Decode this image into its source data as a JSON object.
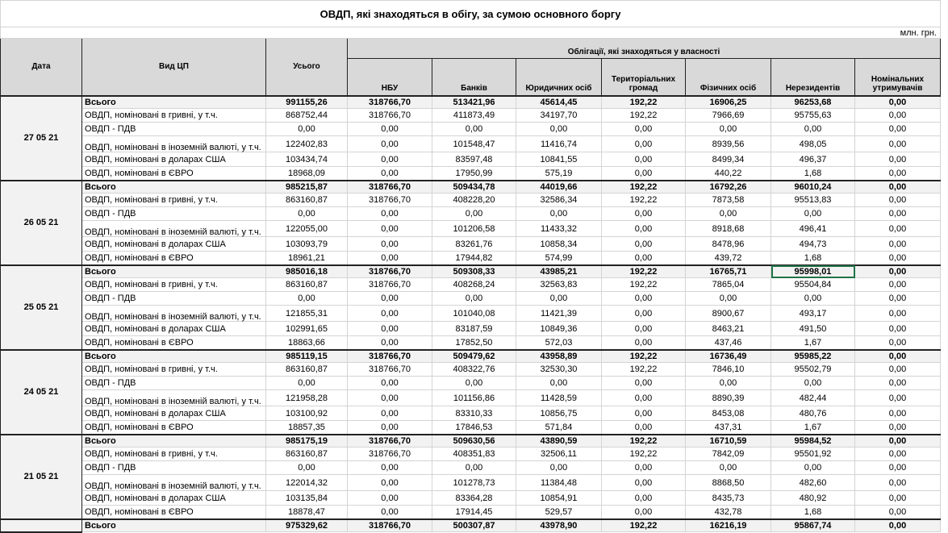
{
  "title": "ОВДП, які знаходяться в обігу, за сумою основного боргу",
  "unit": "млн. грн.",
  "header": {
    "date": "Дата",
    "type": "Вид ЦП",
    "total": "Усього",
    "group": "Облігації, які знаходяться у власності",
    "columns": [
      "НБУ",
      "Банків",
      "Юридичних осіб",
      "Територіальних громад",
      "Фізичних осіб",
      "Нерезидентів",
      "Номінальних утримувачів"
    ]
  },
  "blocks": [
    {
      "date": "27 05 21",
      "rows": [
        [
          "Всього",
          "991155,26",
          "318766,70",
          "513421,96",
          "45614,45",
          "192,22",
          "16906,25",
          "96253,68",
          "0,00"
        ],
        [
          "ОВДП, номіновані в гривні, у т.ч.",
          "868752,44",
          "318766,70",
          "411873,49",
          "34197,70",
          "192,22",
          "7966,69",
          "95755,63",
          "0,00"
        ],
        [
          "ОВДП - ПДВ",
          "0,00",
          "0,00",
          "0,00",
          "0,00",
          "0,00",
          "0,00",
          "0,00",
          "0,00"
        ],
        [
          "ОВДП, номіновані в іноземній валюті, у т.ч.",
          "122402,83",
          "0,00",
          "101548,47",
          "11416,74",
          "0,00",
          "8939,56",
          "498,05",
          "0,00"
        ],
        [
          "ОВДП, номіновані в доларах США",
          "103434,74",
          "0,00",
          "83597,48",
          "10841,55",
          "0,00",
          "8499,34",
          "496,37",
          "0,00"
        ],
        [
          "ОВДП, номіновані в ЄВРО",
          "18968,09",
          "0,00",
          "17950,99",
          "575,19",
          "0,00",
          "440,22",
          "1,68",
          "0,00"
        ]
      ]
    },
    {
      "date": "26 05 21",
      "rows": [
        [
          "Всього",
          "985215,87",
          "318766,70",
          "509434,78",
          "44019,66",
          "192,22",
          "16792,26",
          "96010,24",
          "0,00"
        ],
        [
          "ОВДП, номіновані в гривні, у т.ч.",
          "863160,87",
          "318766,70",
          "408228,20",
          "32586,34",
          "192,22",
          "7873,58",
          "95513,83",
          "0,00"
        ],
        [
          "ОВДП - ПДВ",
          "0,00",
          "0,00",
          "0,00",
          "0,00",
          "0,00",
          "0,00",
          "0,00",
          "0,00"
        ],
        [
          "ОВДП, номіновані в іноземній валюті, у т.ч.",
          "122055,00",
          "0,00",
          "101206,58",
          "11433,32",
          "0,00",
          "8918,68",
          "496,41",
          "0,00"
        ],
        [
          "ОВДП, номіновані в доларах США",
          "103093,79",
          "0,00",
          "83261,76",
          "10858,34",
          "0,00",
          "8478,96",
          "494,73",
          "0,00"
        ],
        [
          "ОВДП, номіновані в ЄВРО",
          "18961,21",
          "0,00",
          "17944,82",
          "574,99",
          "0,00",
          "439,72",
          "1,68",
          "0,00"
        ]
      ]
    },
    {
      "date": "25 05 21",
      "rows": [
        [
          "Всього",
          "985016,18",
          "318766,70",
          "509308,33",
          "43985,21",
          "192,22",
          "16765,71",
          "95998,01",
          "0,00"
        ],
        [
          "ОВДП, номіновані в гривні, у т.ч.",
          "863160,87",
          "318766,70",
          "408268,24",
          "32563,83",
          "192,22",
          "7865,04",
          "95504,84",
          "0,00"
        ],
        [
          "ОВДП - ПДВ",
          "0,00",
          "0,00",
          "0,00",
          "0,00",
          "0,00",
          "0,00",
          "0,00",
          "0,00"
        ],
        [
          "ОВДП, номіновані в іноземній валюті, у т.ч.",
          "121855,31",
          "0,00",
          "101040,08",
          "11421,39",
          "0,00",
          "8900,67",
          "493,17",
          "0,00"
        ],
        [
          "ОВДП, номіновані в доларах США",
          "102991,65",
          "0,00",
          "83187,59",
          "10849,36",
          "0,00",
          "8463,21",
          "491,50",
          "0,00"
        ],
        [
          "ОВДП, номіновані в ЄВРО",
          "18863,66",
          "0,00",
          "17852,50",
          "572,03",
          "0,00",
          "437,46",
          "1,67",
          "0,00"
        ]
      ]
    },
    {
      "date": "24 05 21",
      "rows": [
        [
          "Всього",
          "985119,15",
          "318766,70",
          "509479,62",
          "43958,89",
          "192,22",
          "16736,49",
          "95985,22",
          "0,00"
        ],
        [
          "ОВДП, номіновані в гривні, у т.ч.",
          "863160,87",
          "318766,70",
          "408322,76",
          "32530,30",
          "192,22",
          "7846,10",
          "95502,79",
          "0,00"
        ],
        [
          "ОВДП - ПДВ",
          "0,00",
          "0,00",
          "0,00",
          "0,00",
          "0,00",
          "0,00",
          "0,00",
          "0,00"
        ],
        [
          "ОВДП, номіновані в іноземній валюті, у т.ч.",
          "121958,28",
          "0,00",
          "101156,86",
          "11428,59",
          "0,00",
          "8890,39",
          "482,44",
          "0,00"
        ],
        [
          "ОВДП, номіновані в доларах США",
          "103100,92",
          "0,00",
          "83310,33",
          "10856,75",
          "0,00",
          "8453,08",
          "480,76",
          "0,00"
        ],
        [
          "ОВДП, номіновані в ЄВРО",
          "18857,35",
          "0,00",
          "17846,53",
          "571,84",
          "0,00",
          "437,31",
          "1,67",
          "0,00"
        ]
      ]
    },
    {
      "date": "21 05 21",
      "rows": [
        [
          "Всього",
          "985175,19",
          "318766,70",
          "509630,56",
          "43890,59",
          "192,22",
          "16710,59",
          "95984,52",
          "0,00"
        ],
        [
          "ОВДП, номіновані в гривні, у т.ч.",
          "863160,87",
          "318766,70",
          "408351,83",
          "32506,11",
          "192,22",
          "7842,09",
          "95501,92",
          "0,00"
        ],
        [
          "ОВДП - ПДВ",
          "0,00",
          "0,00",
          "0,00",
          "0,00",
          "0,00",
          "0,00",
          "0,00",
          "0,00"
        ],
        [
          "ОВДП, номіновані в іноземній валюті, у т.ч.",
          "122014,32",
          "0,00",
          "101278,73",
          "11384,48",
          "0,00",
          "8868,50",
          "482,60",
          "0,00"
        ],
        [
          "ОВДП, номіновані в доларах США",
          "103135,84",
          "0,00",
          "83364,28",
          "10854,91",
          "0,00",
          "8435,73",
          "480,92",
          "0,00"
        ],
        [
          "ОВДП, номіновані в ЄВРО",
          "18878,47",
          "0,00",
          "17914,45",
          "529,57",
          "0,00",
          "432,78",
          "1,68",
          "0,00"
        ]
      ]
    },
    {
      "rows": [
        [
          "Всього",
          "975329,62",
          "318766,70",
          "500307,87",
          "43978,90",
          "192,22",
          "16216,19",
          "95867,74",
          "0,00"
        ]
      ]
    }
  ]
}
